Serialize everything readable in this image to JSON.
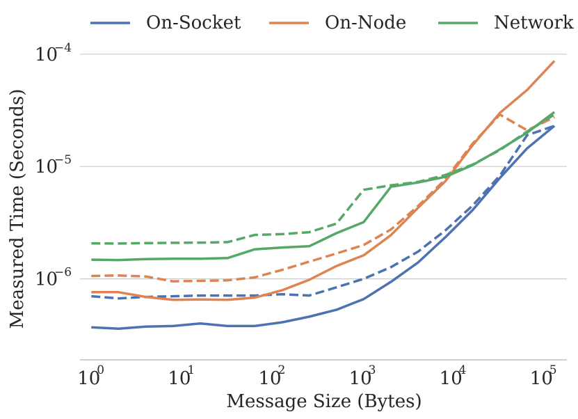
{
  "chart_data": {
    "type": "line",
    "title": "",
    "xlabel": "Message Size (Bytes)",
    "ylabel": "Measured Time (Seconds)",
    "x_scale": "log",
    "y_scale": "log",
    "xlim": [
      0.75,
      180000
    ],
    "ylim": [
      1.9e-07,
      0.000115
    ],
    "grid": "horizontal",
    "legend_position": "top",
    "x_ticks": [
      {
        "value": 1,
        "base": "10",
        "exp": "0"
      },
      {
        "value": 10,
        "base": "10",
        "exp": "1"
      },
      {
        "value": 100,
        "base": "10",
        "exp": "2"
      },
      {
        "value": 1000,
        "base": "10",
        "exp": "3"
      },
      {
        "value": 10000,
        "base": "10",
        "exp": "4"
      },
      {
        "value": 100000,
        "base": "10",
        "exp": "5"
      }
    ],
    "y_ticks": [
      {
        "value": 1e-06,
        "base": "10",
        "exp": "−6"
      },
      {
        "value": 1e-05,
        "base": "10",
        "exp": "−5"
      },
      {
        "value": 0.0001,
        "base": "10",
        "exp": "−4"
      }
    ],
    "x": [
      1,
      2,
      4,
      8,
      16,
      32,
      64,
      128,
      256,
      512,
      1024,
      2048,
      4096,
      8192,
      16384,
      32768,
      65536,
      131072
    ],
    "series": [
      {
        "name": "On-Socket",
        "color": "#4c72b0",
        "style": "solid",
        "values": [
          3.7e-07,
          3.6e-07,
          3.75e-07,
          3.8e-07,
          4e-07,
          3.8e-07,
          3.8e-07,
          4.1e-07,
          4.6e-07,
          5.3e-07,
          6.6e-07,
          9.4e-07,
          1.4e-06,
          2.35e-06,
          4.1e-06,
          7.9e-06,
          1.45e-05,
          2.3e-05
        ]
      },
      {
        "name": "On-Socket",
        "color": "#4c72b0",
        "style": "dashed",
        "values": [
          7e-07,
          6.7e-07,
          6.9e-07,
          7e-07,
          7.1e-07,
          7.1e-07,
          7.1e-07,
          7.3e-07,
          7.1e-07,
          8.4e-07,
          1e-06,
          1.27e-06,
          1.75e-06,
          2.7e-06,
          4.5e-06,
          8.3e-06,
          1.9e-05,
          2.3e-05
        ]
      },
      {
        "name": "On-Node",
        "color": "#dd8452",
        "style": "solid",
        "values": [
          7.6e-07,
          7.6e-07,
          6.9e-07,
          6.5e-07,
          6.55e-07,
          6.5e-07,
          6.8e-07,
          7.9e-07,
          9.8e-07,
          1.3e-06,
          1.62e-06,
          2.45e-06,
          4.3e-06,
          7.4e-06,
          1.55e-05,
          3e-05,
          4.8e-05,
          8.7e-05
        ]
      },
      {
        "name": "On-Node",
        "color": "#dd8452",
        "style": "dashed",
        "values": [
          1.06e-06,
          1.07e-06,
          1.05e-06,
          9.5e-07,
          9.6e-07,
          9.7e-07,
          1.03e-06,
          1.2e-06,
          1.42e-06,
          1.68e-06,
          2e-06,
          2.75e-06,
          4.45e-06,
          7.7e-06,
          1.6e-05,
          2.9e-05,
          2.1e-05,
          2.75e-05
        ]
      },
      {
        "name": "Network",
        "color": "#55a868",
        "style": "solid",
        "values": [
          1.48e-06,
          1.47e-06,
          1.5e-06,
          1.51e-06,
          1.51e-06,
          1.53e-06,
          1.83e-06,
          1.9e-06,
          1.95e-06,
          2.55e-06,
          3.2e-06,
          6.6e-06,
          7.2e-06,
          8.1e-06,
          1.03e-05,
          1.42e-05,
          2e-05,
          3.05e-05
        ]
      },
      {
        "name": "Network",
        "color": "#55a868",
        "style": "dashed",
        "values": [
          2.07e-06,
          2.06e-06,
          2.08e-06,
          2.09e-06,
          2.1e-06,
          2.12e-06,
          2.46e-06,
          2.5e-06,
          2.6e-06,
          3.1e-06,
          6.2e-06,
          6.8e-06,
          7.3e-06,
          8.4e-06,
          1.04e-05,
          1.4e-05,
          2.05e-05,
          2.9e-05
        ]
      }
    ],
    "legend": [
      {
        "label": "On-Socket",
        "color": "#4c72b0"
      },
      {
        "label": "On-Node",
        "color": "#dd8452"
      },
      {
        "label": "Network",
        "color": "#55a868"
      }
    ]
  }
}
